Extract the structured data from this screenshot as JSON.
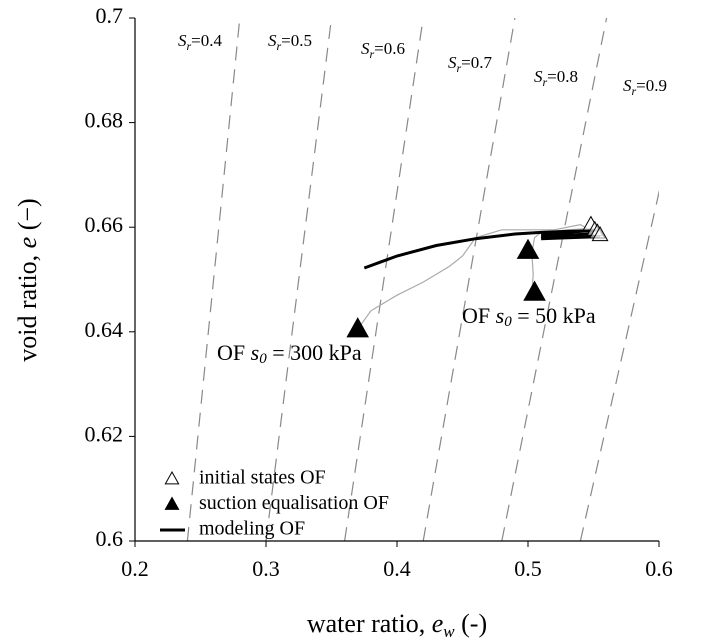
{
  "chart_data": {
    "type": "scatter",
    "x_label": [
      "water ratio, ",
      "e",
      "w",
      " (-)"
    ],
    "y_label": [
      "void ratio, ",
      "e",
      " (−)"
    ],
    "xlim": [
      0.2,
      0.6
    ],
    "xticks": [
      0.2,
      0.3,
      0.4,
      0.5,
      0.6
    ],
    "ylim": [
      0.6,
      0.7
    ],
    "yticks": [
      0.6,
      0.62,
      0.64,
      0.66,
      0.68,
      0.7
    ],
    "sr_symbol": "S",
    "sr_subscript": "r",
    "sr_lines": [
      {
        "value": 0.4,
        "label": "=0.4"
      },
      {
        "value": 0.5,
        "label": "=0.5"
      },
      {
        "value": 0.6,
        "label": "=0.6"
      },
      {
        "value": 0.7,
        "label": "=0.7"
      },
      {
        "value": 0.8,
        "label": "=0.8"
      },
      {
        "value": 0.9,
        "label": "=0.9"
      }
    ],
    "series": [
      {
        "name": "initial states OF",
        "color": "#000000",
        "marker": "open-triangle",
        "x": [
          0.548,
          0.551,
          0.553,
          0.555
        ],
        "y": [
          0.6605,
          0.6595,
          0.659,
          0.6585
        ]
      },
      {
        "name": "suction equalisation OF",
        "color": "#000000",
        "marker": "filled-triangle",
        "x": [
          0.37,
          0.5,
          0.505
        ],
        "y": [
          0.6405,
          0.6555,
          0.6475
        ]
      },
      {
        "name": "modeling OF",
        "color": "#000000",
        "marker": "line",
        "lines": [
          {
            "x": [
              0.375,
              0.4,
              0.43,
              0.46,
              0.49,
              0.51,
              0.53,
              0.55
            ],
            "y": [
              0.6522,
              0.6545,
              0.6565,
              0.6578,
              0.6587,
              0.659,
              0.6592,
              0.6593
            ]
          },
          {
            "x": [
              0.51,
              0.53,
              0.55
            ],
            "y": [
              0.6582,
              0.6585,
              0.6587
            ]
          },
          {
            "x": [
              0.51,
              0.53,
              0.555
            ],
            "y": [
              0.6587,
              0.659,
              0.6595
            ]
          },
          {
            "x": [
              0.51,
              0.53,
              0.555
            ],
            "y": [
              0.6578,
              0.658,
              0.6582
            ]
          }
        ]
      },
      {
        "color": "#aaaaaa",
        "marker": "thin-line",
        "lines": [
          {
            "x": [
              0.37,
              0.38,
              0.39,
              0.4,
              0.42,
              0.44,
              0.45,
              0.46,
              0.48,
              0.5,
              0.52,
              0.54,
              0.55
            ],
            "y": [
              0.6405,
              0.644,
              0.6455,
              0.647,
              0.6495,
              0.6525,
              0.6545,
              0.658,
              0.6595,
              0.6595,
              0.6595,
              0.6605,
              0.659
            ]
          },
          {
            "x": [
              0.503,
              0.504,
              0.503,
              0.505,
              0.51,
              0.53,
              0.55
            ],
            "y": [
              0.6475,
              0.651,
              0.655,
              0.658,
              0.659,
              0.6595,
              0.6598
            ]
          }
        ]
      }
    ],
    "annotations": [
      [
        "OF ",
        "s",
        "0",
        " = 300 kPa"
      ],
      [
        "OF ",
        "s",
        "0",
        " = 50 kPa"
      ]
    ]
  }
}
